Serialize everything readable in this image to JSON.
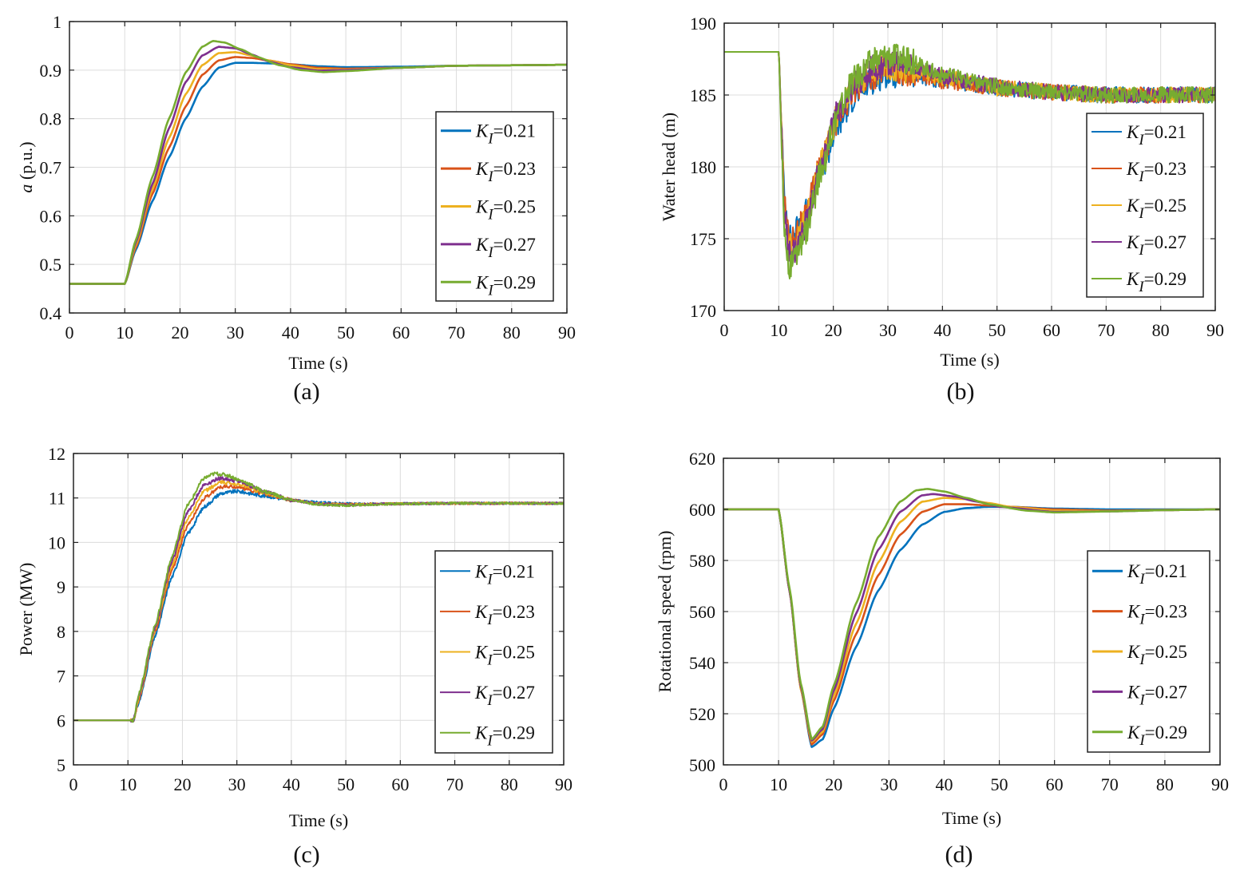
{
  "figure": {
    "panel_labels": [
      "(a)",
      "(b)",
      "(c)",
      "(d)"
    ],
    "legend_prefix": "K",
    "legend_subscript": "I",
    "series_colors": [
      "#0072BD",
      "#D95319",
      "#EDB120",
      "#7E2F8E",
      "#77AC30"
    ]
  },
  "chart_data": [
    {
      "type": "line",
      "panel": "(a)",
      "title": "",
      "xlabel": "Time (s)",
      "ylabel": "a (p.u.)",
      "ylabel_italic_part": "a",
      "ylabel_rest": " (p.u.)",
      "xlim": [
        0,
        90
      ],
      "ylim": [
        0.4,
        1.0
      ],
      "xticks": [
        "0",
        "10",
        "20",
        "30",
        "40",
        "50",
        "60",
        "70",
        "80",
        "90"
      ],
      "yticks": [
        "0.4",
        "0.5",
        "0.6",
        "0.7",
        "0.8",
        "0.9",
        "1"
      ],
      "grid": true,
      "legend_position": "middle-right",
      "noisy": false,
      "series": [
        {
          "name": "=0.21",
          "x": [
            0,
            10,
            12,
            15,
            18,
            21,
            24,
            27,
            30,
            33,
            36,
            40,
            45,
            50,
            60,
            70,
            80,
            90
          ],
          "values": [
            0.46,
            0.46,
            0.53,
            0.63,
            0.72,
            0.8,
            0.865,
            0.905,
            0.915,
            0.915,
            0.914,
            0.912,
            0.908,
            0.906,
            0.907,
            0.909,
            0.91,
            0.911
          ]
        },
        {
          "name": "=0.23",
          "x": [
            0,
            10,
            12,
            15,
            18,
            21,
            24,
            27,
            30,
            33,
            36,
            40,
            45,
            50,
            60,
            70,
            80,
            90
          ],
          "values": [
            0.46,
            0.46,
            0.535,
            0.645,
            0.74,
            0.825,
            0.89,
            0.92,
            0.927,
            0.925,
            0.92,
            0.912,
            0.905,
            0.903,
            0.905,
            0.909,
            0.91,
            0.911
          ]
        },
        {
          "name": "=0.25",
          "x": [
            0,
            10,
            12,
            15,
            18,
            21,
            24,
            27,
            30,
            33,
            36,
            40,
            45,
            50,
            60,
            70,
            80,
            90
          ],
          "values": [
            0.46,
            0.46,
            0.54,
            0.655,
            0.76,
            0.85,
            0.91,
            0.935,
            0.937,
            0.93,
            0.92,
            0.91,
            0.902,
            0.901,
            0.905,
            0.909,
            0.91,
            0.911
          ]
        },
        {
          "name": "=0.27",
          "x": [
            0,
            10,
            12,
            15,
            18,
            21,
            24,
            27,
            30,
            33,
            36,
            40,
            45,
            50,
            60,
            70,
            80,
            90
          ],
          "values": [
            0.46,
            0.46,
            0.545,
            0.665,
            0.78,
            0.875,
            0.93,
            0.948,
            0.945,
            0.932,
            0.918,
            0.906,
            0.899,
            0.9,
            0.905,
            0.909,
            0.91,
            0.911
          ]
        },
        {
          "name": "=0.29",
          "x": [
            0,
            10,
            12,
            15,
            18,
            21,
            24,
            26,
            28,
            31,
            34,
            38,
            42,
            46,
            50,
            60,
            70,
            80,
            90
          ],
          "values": [
            0.46,
            0.46,
            0.55,
            0.68,
            0.8,
            0.895,
            0.948,
            0.96,
            0.957,
            0.943,
            0.927,
            0.91,
            0.9,
            0.896,
            0.898,
            0.905,
            0.909,
            0.91,
            0.911
          ]
        }
      ]
    },
    {
      "type": "line",
      "panel": "(b)",
      "title": "",
      "xlabel": "Time (s)",
      "ylabel": "Water head (m)",
      "ylabel_italic_part": "",
      "ylabel_rest": "Water head (m)",
      "xlim": [
        0,
        90
      ],
      "ylim": [
        170,
        190
      ],
      "xticks": [
        "0",
        "10",
        "20",
        "30",
        "40",
        "50",
        "60",
        "70",
        "80",
        "90"
      ],
      "yticks": [
        "170",
        "175",
        "180",
        "185",
        "190"
      ],
      "grid": true,
      "legend_position": "middle-right",
      "noisy": true,
      "noise_amplitude": 0.8,
      "series": [
        {
          "name": "=0.21",
          "x": [
            0,
            10,
            10.5,
            11,
            12,
            13,
            15,
            18,
            21,
            24,
            27,
            30,
            35,
            40,
            50,
            60,
            70,
            80,
            90
          ],
          "values": [
            188,
            188,
            183,
            178,
            175,
            175.5,
            177,
            180,
            183,
            185,
            186,
            186.5,
            186.3,
            186,
            185.5,
            185.2,
            185,
            185,
            185
          ]
        },
        {
          "name": "=0.23",
          "x": [
            0,
            10,
            10.5,
            11,
            12,
            13,
            15,
            18,
            21,
            24,
            27,
            30,
            35,
            40,
            50,
            60,
            70,
            80,
            90
          ],
          "values": [
            188,
            188,
            183,
            177.5,
            175,
            175,
            177,
            180.5,
            183.5,
            185.3,
            186.3,
            186.8,
            186.5,
            186,
            185.5,
            185.2,
            185,
            185,
            185
          ]
        },
        {
          "name": "=0.25",
          "x": [
            0,
            10,
            10.5,
            11,
            12,
            13,
            15,
            18,
            21,
            24,
            27,
            30,
            35,
            40,
            50,
            60,
            70,
            80,
            90
          ],
          "values": [
            188,
            188,
            183,
            177,
            174.5,
            174.5,
            176.5,
            180.5,
            183.8,
            185.5,
            186.5,
            187,
            186.7,
            186.2,
            185.5,
            185.2,
            185,
            185,
            185
          ]
        },
        {
          "name": "=0.27",
          "x": [
            0,
            10,
            10.5,
            11,
            12,
            13,
            15,
            18,
            21,
            24,
            27,
            30,
            35,
            40,
            50,
            60,
            70,
            80,
            90
          ],
          "values": [
            188,
            188,
            182.5,
            176.5,
            174,
            174,
            176,
            180.5,
            184,
            185.8,
            186.8,
            187.3,
            187,
            186.3,
            185.6,
            185.2,
            185,
            185,
            185
          ]
        },
        {
          "name": "=0.29",
          "x": [
            0,
            10,
            10.5,
            11,
            12,
            13,
            15,
            18,
            21,
            24,
            27,
            30,
            35,
            40,
            50,
            60,
            70,
            80,
            90
          ],
          "values": [
            188,
            188,
            182,
            175.5,
            173,
            173.5,
            175.5,
            180,
            184,
            186.2,
            187.3,
            187.8,
            187.2,
            186.4,
            185.6,
            185.2,
            185,
            185,
            185
          ]
        }
      ]
    },
    {
      "type": "line",
      "panel": "(c)",
      "title": "",
      "xlabel": "Time (s)",
      "ylabel": "Power (MW)",
      "ylabel_italic_part": "",
      "ylabel_rest": "Power (MW)",
      "xlim": [
        0,
        90
      ],
      "ylim": [
        5,
        12
      ],
      "xticks": [
        "0",
        "10",
        "20",
        "30",
        "40",
        "50",
        "60",
        "70",
        "80",
        "90"
      ],
      "yticks": [
        "5",
        "6",
        "7",
        "8",
        "9",
        "10",
        "11",
        "12"
      ],
      "grid": true,
      "legend_position": "middle-right",
      "noisy": true,
      "noise_amplitude": 0.04,
      "series": [
        {
          "name": "=0.21",
          "x": [
            0,
            10,
            11,
            12,
            15,
            18,
            21,
            24,
            27,
            30,
            35,
            40,
            45,
            50,
            60,
            70,
            80,
            90
          ],
          "values": [
            6,
            6,
            6.0,
            6.4,
            7.9,
            9.2,
            10.2,
            10.8,
            11.1,
            11.15,
            11.05,
            10.95,
            10.9,
            10.87,
            10.87,
            10.88,
            10.88,
            10.88
          ]
        },
        {
          "name": "=0.23",
          "x": [
            0,
            10,
            11,
            12,
            15,
            18,
            21,
            24,
            27,
            30,
            35,
            40,
            45,
            50,
            60,
            70,
            80,
            90
          ],
          "values": [
            6,
            6,
            6.0,
            6.45,
            8.0,
            9.35,
            10.4,
            11.0,
            11.25,
            11.25,
            11.1,
            10.95,
            10.88,
            10.86,
            10.87,
            10.88,
            10.88,
            10.88
          ]
        },
        {
          "name": "=0.25",
          "x": [
            0,
            10,
            11,
            12,
            15,
            18,
            21,
            24,
            27,
            30,
            35,
            40,
            45,
            50,
            60,
            70,
            80,
            90
          ],
          "values": [
            6,
            6,
            6.0,
            6.5,
            8.05,
            9.45,
            10.55,
            11.15,
            11.35,
            11.32,
            11.12,
            10.95,
            10.87,
            10.85,
            10.87,
            10.88,
            10.88,
            10.88
          ]
        },
        {
          "name": "=0.27",
          "x": [
            0,
            10,
            11,
            12,
            15,
            18,
            21,
            24,
            27,
            30,
            35,
            40,
            45,
            50,
            60,
            70,
            80,
            90
          ],
          "values": [
            6,
            6,
            6.0,
            6.55,
            8.1,
            9.55,
            10.7,
            11.3,
            11.45,
            11.38,
            11.15,
            10.95,
            10.86,
            10.84,
            10.87,
            10.88,
            10.88,
            10.88
          ]
        },
        {
          "name": "=0.29",
          "x": [
            0,
            10,
            11,
            12,
            15,
            18,
            21,
            24,
            26,
            28,
            31,
            35,
            40,
            45,
            50,
            60,
            70,
            80,
            90
          ],
          "values": [
            6,
            6,
            6.0,
            6.6,
            8.15,
            9.65,
            10.85,
            11.45,
            11.55,
            11.52,
            11.38,
            11.15,
            10.95,
            10.85,
            10.83,
            10.87,
            10.88,
            10.88,
            10.88
          ]
        }
      ]
    },
    {
      "type": "line",
      "panel": "(d)",
      "title": "",
      "xlabel": "Time (s)",
      "ylabel": "Rotational speed (rpm)",
      "ylabel_italic_part": "",
      "ylabel_rest": "Rotational speed (rpm)",
      "xlim": [
        0,
        90
      ],
      "ylim": [
        500,
        620
      ],
      "xticks": [
        "0",
        "10",
        "20",
        "30",
        "40",
        "50",
        "60",
        "70",
        "80",
        "90"
      ],
      "yticks": [
        "500",
        "520",
        "540",
        "560",
        "580",
        "600",
        "620"
      ],
      "grid": true,
      "legend_position": "middle-right",
      "noisy": false,
      "series": [
        {
          "name": "=0.21",
          "x": [
            0,
            10,
            12,
            14,
            16,
            18,
            20,
            24,
            28,
            32,
            36,
            40,
            44,
            48,
            52,
            60,
            70,
            80,
            90
          ],
          "values": [
            600,
            600,
            568,
            530,
            507,
            510,
            522,
            546,
            568,
            584,
            594,
            599,
            600.5,
            601,
            601,
            600.3,
            600,
            600,
            600
          ]
        },
        {
          "name": "=0.23",
          "x": [
            0,
            10,
            12,
            14,
            16,
            18,
            20,
            24,
            28,
            32,
            36,
            40,
            44,
            48,
            52,
            60,
            70,
            80,
            90
          ],
          "values": [
            600,
            600,
            568,
            530,
            508,
            512,
            525,
            551,
            574,
            590,
            599,
            602,
            602,
            601.5,
            601,
            600,
            599.5,
            599.8,
            600
          ]
        },
        {
          "name": "=0.25",
          "x": [
            0,
            10,
            12,
            14,
            16,
            18,
            20,
            24,
            28,
            32,
            36,
            40,
            44,
            48,
            52,
            60,
            70,
            80,
            90
          ],
          "values": [
            600,
            600,
            568,
            530,
            509,
            513,
            527,
            555,
            579,
            595,
            603,
            604.5,
            604,
            602.5,
            601,
            599.5,
            599.3,
            599.7,
            600
          ]
        },
        {
          "name": "=0.27",
          "x": [
            0,
            10,
            12,
            14,
            16,
            18,
            20,
            24,
            28,
            32,
            36,
            38,
            42,
            46,
            50,
            60,
            70,
            80,
            90
          ],
          "values": [
            600,
            600,
            568,
            531,
            509.5,
            514,
            529,
            559,
            584,
            599,
            605.5,
            606,
            605,
            603,
            601,
            599,
            599.2,
            599.7,
            600
          ]
        },
        {
          "name": "=0.29",
          "x": [
            0,
            10,
            12,
            14,
            16,
            18,
            20,
            24,
            28,
            32,
            35,
            37,
            40,
            44,
            48,
            55,
            60,
            70,
            80,
            90
          ],
          "values": [
            600,
            600,
            569,
            532,
            510,
            515,
            531,
            563,
            589,
            603,
            607.5,
            608,
            607,
            604.5,
            602,
            599.5,
            598.8,
            599.2,
            599.7,
            600
          ]
        }
      ]
    }
  ]
}
